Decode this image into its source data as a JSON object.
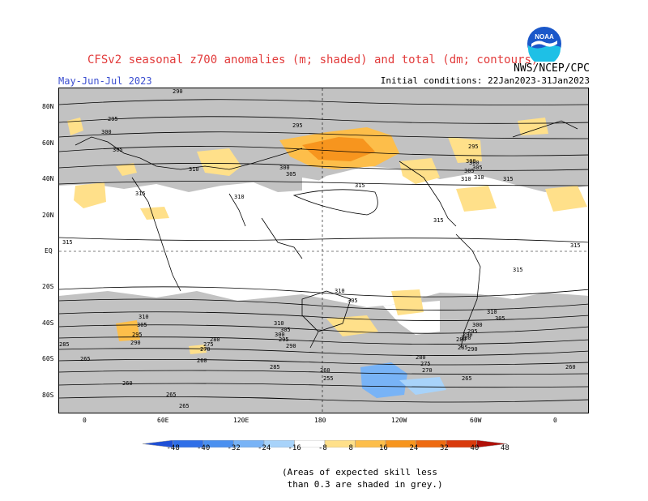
{
  "title": "CFSv2 seasonal z700 anomalies (m; shaded) and total (dm; contours)",
  "season": "May-Jun-Jul 2023",
  "agency": "NWS/NCEP/CPC",
  "initial_conditions": "Initial conditions: 22Jan2023-31Jan2023",
  "logo_text": "NOAA",
  "lat_labels": [
    "80N",
    "60N",
    "40N",
    "20N",
    "EQ",
    "20S",
    "40S",
    "60S",
    "80S"
  ],
  "lon_labels": [
    "0",
    "60E",
    "120E",
    "180",
    "120W",
    "60W",
    "0"
  ],
  "colorbar": {
    "labels": [
      "-48",
      "-40",
      "-32",
      "-24",
      "-16",
      "-8",
      "8",
      "16",
      "24",
      "32",
      "40",
      "48"
    ],
    "colors": [
      "#1e4fd6",
      "#2f6fe8",
      "#4a90f0",
      "#78b3f6",
      "#a8d3fa",
      "#ffffff",
      "#ffe08a",
      "#fdbe4a",
      "#f7951e",
      "#ee6a10",
      "#d93a0c",
      "#b01008"
    ]
  },
  "contour_labels": [
    {
      "text": "290"
    },
    {
      "text": "295"
    },
    {
      "text": "300"
    },
    {
      "text": "305"
    },
    {
      "text": "310"
    },
    {
      "text": "315"
    },
    {
      "text": "295"
    },
    {
      "text": "300"
    },
    {
      "text": "305"
    },
    {
      "text": "310"
    },
    {
      "text": "315"
    },
    {
      "text": "300"
    },
    {
      "text": "305"
    },
    {
      "text": "310"
    },
    {
      "text": "295"
    },
    {
      "text": "300"
    },
    {
      "text": "305"
    },
    {
      "text": "310"
    },
    {
      "text": "315"
    },
    {
      "text": "315"
    },
    {
      "text": "315"
    },
    {
      "text": "315"
    },
    {
      "text": "315"
    },
    {
      "text": "310"
    },
    {
      "text": "305"
    },
    {
      "text": "310"
    },
    {
      "text": "305"
    },
    {
      "text": "295"
    },
    {
      "text": "290"
    },
    {
      "text": "280"
    },
    {
      "text": "275"
    },
    {
      "text": "270"
    },
    {
      "text": "265"
    },
    {
      "text": "260"
    },
    {
      "text": "310"
    },
    {
      "text": "305"
    },
    {
      "text": "300"
    },
    {
      "text": "295"
    },
    {
      "text": "290"
    },
    {
      "text": "285"
    },
    {
      "text": "280"
    },
    {
      "text": "275"
    },
    {
      "text": "270"
    },
    {
      "text": "265"
    },
    {
      "text": "260"
    },
    {
      "text": "255"
    },
    {
      "text": "260"
    },
    {
      "text": "285"
    },
    {
      "text": "265"
    },
    {
      "text": "280"
    },
    {
      "text": "265"
    },
    {
      "text": "260"
    },
    {
      "text": "310"
    },
    {
      "text": "305"
    },
    {
      "text": "300"
    },
    {
      "text": "295"
    },
    {
      "text": "290"
    },
    {
      "text": "285"
    },
    {
      "text": "280"
    },
    {
      "text": "290"
    }
  ],
  "footnote": "(Areas of expected skill less\n than 0.3 are shaded in grey.)"
}
